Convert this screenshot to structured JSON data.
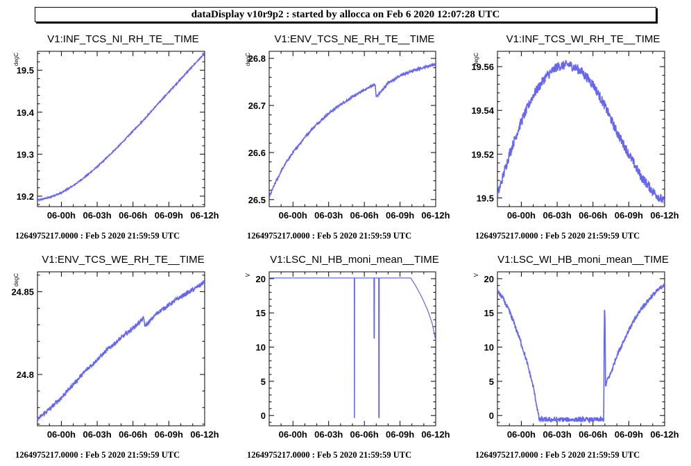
{
  "header": {
    "title": "dataDisplay v10r9p2 : started by allocca on Feb  6 2020 12:07:28 UTC"
  },
  "style": {
    "line_color": "#6666ee",
    "axis_color": "#000000"
  },
  "chart_data": [
    {
      "type": "line",
      "title": "V1:INF_TCS_NI_RH_TE__TIME",
      "ylabel": "degC",
      "xlim": [
        -2.0,
        12.0
      ],
      "ylim": [
        19.175,
        19.545
      ],
      "xticks": [
        0,
        3,
        6,
        9,
        12
      ],
      "xtick_labels": [
        "06-00h",
        "06-03h",
        "06-06h",
        "06-09h",
        "06-12h"
      ],
      "yticks": [
        19.2,
        19.3,
        19.4,
        19.5
      ],
      "ytick_labels": [
        "19.2",
        "19.3",
        "19.4",
        "19.5"
      ],
      "footer": "1264975217.0000 : Feb  5 2020 21:59:59 UTC",
      "noise": 0.0015,
      "series": [
        {
          "x": [
            -2,
            -1,
            0,
            1,
            2,
            3,
            4,
            5,
            6,
            7,
            8,
            9,
            10,
            11,
            12
          ],
          "y": [
            19.19,
            19.197,
            19.208,
            19.225,
            19.246,
            19.27,
            19.297,
            19.325,
            19.355,
            19.385,
            19.417,
            19.448,
            19.479,
            19.51,
            19.54
          ]
        }
      ]
    },
    {
      "type": "line",
      "title": "V1:ENV_TCS_NE_RH_TE__TIME",
      "ylabel": "degC",
      "xlim": [
        -2.0,
        12.0
      ],
      "ylim": [
        26.485,
        26.815
      ],
      "xticks": [
        0,
        3,
        6,
        9,
        12
      ],
      "xtick_labels": [
        "06-00h",
        "06-03h",
        "06-06h",
        "06-09h",
        "06-12h"
      ],
      "yticks": [
        26.5,
        26.6,
        26.7,
        26.8
      ],
      "ytick_labels": [
        "26.5",
        "26.6",
        "26.7",
        "26.8"
      ],
      "footer": "1264975217.0000 : Feb  5 2020 21:59:59 UTC",
      "noise": 0.0025,
      "series": [
        {
          "x": [
            -2,
            -1.5,
            -1,
            -0.5,
            0,
            1,
            2,
            3,
            4,
            5,
            6,
            6.9,
            7.0,
            7.5,
            8,
            9,
            10,
            11,
            12
          ],
          "y": [
            26.505,
            26.535,
            26.56,
            26.582,
            26.6,
            26.633,
            26.66,
            26.683,
            26.702,
            26.718,
            26.733,
            26.745,
            26.718,
            26.732,
            26.748,
            26.763,
            26.773,
            26.781,
            26.788
          ]
        }
      ]
    },
    {
      "type": "line",
      "title": "V1:INF_TCS_WI_RH_TE__TIME",
      "ylabel": "degC",
      "xlim": [
        -2.0,
        12.0
      ],
      "ylim": [
        19.496,
        19.567
      ],
      "xticks": [
        0,
        3,
        6,
        9,
        12
      ],
      "xtick_labels": [
        "06-00h",
        "06-03h",
        "06-06h",
        "06-09h",
        "06-12h"
      ],
      "yticks": [
        19.5,
        19.52,
        19.54,
        19.56
      ],
      "ytick_labels": [
        "19.5",
        "19.52",
        "19.54",
        "19.56"
      ],
      "footer": "1264975217.0000 : Feb  5 2020 21:59:59 UTC",
      "noise": 0.0022,
      "series": [
        {
          "x": [
            -2,
            -1,
            0,
            1,
            2,
            3,
            4,
            5,
            6,
            7,
            8,
            9,
            10,
            11,
            12
          ],
          "y": [
            19.501,
            19.52,
            19.535,
            19.547,
            19.555,
            19.56,
            19.561,
            19.558,
            19.552,
            19.542,
            19.53,
            19.52,
            19.51,
            19.503,
            19.498
          ]
        }
      ]
    },
    {
      "type": "line",
      "title": "V1:ENV_TCS_WE_RH_TE__TIME",
      "ylabel": "degC",
      "xlim": [
        -2.0,
        12.0
      ],
      "ylim": [
        24.769,
        24.862
      ],
      "xticks": [
        0,
        3,
        6,
        9,
        12
      ],
      "xtick_labels": [
        "06-00h",
        "06-03h",
        "06-06h",
        "06-09h",
        "06-12h"
      ],
      "yticks": [
        24.8,
        24.85
      ],
      "ytick_labels": [
        "24.8",
        "24.85"
      ],
      "footer": "1264975217.0000 : Feb  5 2020 21:59:59 UTC",
      "noise": 0.0012,
      "series": [
        {
          "x": [
            -2,
            -1,
            0,
            1,
            2,
            3,
            4,
            5,
            6,
            6.9,
            7.0,
            8,
            9,
            10,
            11,
            12
          ],
          "y": [
            24.773,
            24.779,
            24.786,
            24.794,
            24.802,
            24.809,
            24.816,
            24.822,
            24.828,
            24.834,
            24.829,
            24.837,
            24.842,
            24.847,
            24.851,
            24.856
          ]
        }
      ]
    },
    {
      "type": "line",
      "title": "V1:LSC_NI_HB_moni_mean__TIME",
      "ylabel": "V",
      "xlim": [
        -2.0,
        12.0
      ],
      "ylim": [
        -1.5,
        21.0
      ],
      "xticks": [
        0,
        3,
        6,
        9,
        12
      ],
      "xtick_labels": [
        "06-00h",
        "06-03h",
        "06-06h",
        "06-09h",
        "06-12h"
      ],
      "yticks": [
        0,
        5,
        10,
        15,
        20
      ],
      "ytick_labels": [
        "0",
        "5",
        "10",
        "15",
        "20"
      ],
      "footer": "1264975217.0000 : Feb  5 2020 21:59:59 UTC",
      "noise": 0,
      "series": [
        {
          "x": [
            -2,
            5.15,
            5.16,
            5.18,
            5.19,
            6.8,
            6.81,
            6.85,
            6.86,
            7.2,
            7.21,
            7.25,
            7.26,
            9.9,
            10.3,
            10.8,
            11.3,
            11.7,
            12
          ],
          "y": [
            20.1,
            20.1,
            -0.3,
            -0.3,
            20.1,
            20.1,
            11.3,
            11.3,
            20.1,
            20.1,
            -0.3,
            -0.3,
            20.1,
            20.1,
            19.0,
            17.4,
            15.5,
            13.5,
            11.0
          ]
        }
      ]
    },
    {
      "type": "line",
      "title": "V1:LSC_WI_HB_moni_mean__TIME",
      "ylabel": "V",
      "xlim": [
        -2.0,
        12.0
      ],
      "ylim": [
        -1.5,
        21.0
      ],
      "xticks": [
        0,
        3,
        6,
        9,
        12
      ],
      "xtick_labels": [
        "06-00h",
        "06-03h",
        "06-06h",
        "06-09h",
        "06-12h"
      ],
      "yticks": [
        0,
        5,
        10,
        15,
        20
      ],
      "ytick_labels": [
        "0",
        "5",
        "10",
        "15",
        "20"
      ],
      "footer": "1264975217.0000 : Feb  5 2020 21:59:59 UTC",
      "noise": 0.35,
      "series": [
        {
          "x": [
            -2,
            -1.5,
            -1,
            -0.5,
            0,
            0.5,
            1.0,
            1.25,
            1.5,
            6.8,
            6.9,
            6.95,
            7.0,
            7.05,
            7.1,
            7.2,
            7.5,
            8,
            9,
            10,
            11,
            12
          ],
          "y": [
            18.2,
            17.0,
            15.2,
            13.0,
            10.5,
            7.6,
            4.2,
            1.8,
            -0.6,
            -0.6,
            -0.6,
            15.5,
            15.5,
            4.2,
            4.5,
            5.2,
            6.2,
            8.8,
            12.5,
            15.5,
            17.6,
            19.2
          ]
        }
      ]
    }
  ]
}
